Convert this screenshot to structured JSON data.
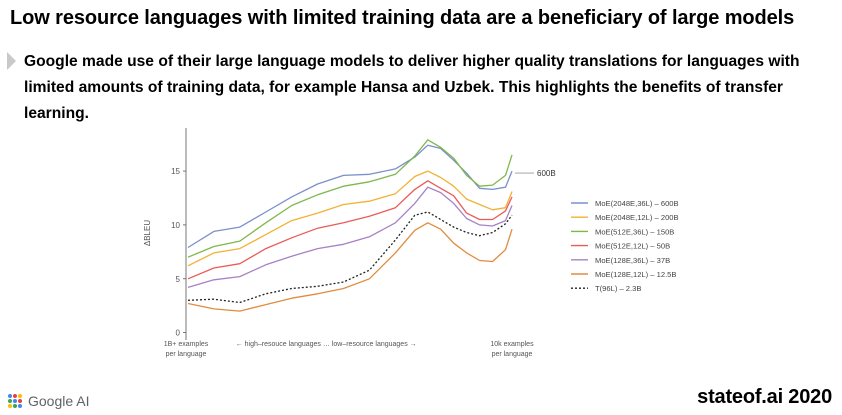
{
  "header": {
    "title": "Low resource languages with limited training data are a beneficiary of large models",
    "subtitle": "Google made use of their large language models to deliver higher quality translations for languages with limited amounts of training data, for example Hansa and Uzbek. This highlights the benefits of transfer learning."
  },
  "footer": {
    "brand": "Google AI",
    "site": "stateof.ai 2020"
  },
  "chart_data": {
    "type": "line",
    "ylabel": "ΔBLEU",
    "ylim": [
      -0.5,
      19
    ],
    "yticks": [
      0,
      5,
      10,
      15
    ],
    "x_tick_labels": [
      {
        "at": 0,
        "lines": [
          "1B+ examples",
          "per language"
        ]
      },
      {
        "at": 43,
        "lines": [
          "← high–resouce languages  …  low–resource languages →"
        ]
      },
      {
        "at": 100,
        "lines": [
          "10k examples",
          "per language"
        ]
      }
    ],
    "annotation": {
      "text": "600B",
      "series": 0
    },
    "legend_position": "right",
    "grid": false,
    "series": [
      {
        "name": "MoE(2048E,36L) – 600B",
        "color": "#7b8fcc",
        "dash": "",
        "points": [
          [
            0,
            7.9
          ],
          [
            8,
            9.4
          ],
          [
            16,
            9.8
          ],
          [
            24,
            11.2
          ],
          [
            32,
            12.6
          ],
          [
            40,
            13.8
          ],
          [
            48,
            14.6
          ],
          [
            56,
            14.7
          ],
          [
            64,
            15.2
          ],
          [
            70,
            16.3
          ],
          [
            74,
            17.4
          ],
          [
            78,
            17.1
          ],
          [
            82,
            16.0
          ],
          [
            86,
            14.8
          ],
          [
            90,
            13.4
          ],
          [
            94,
            13.3
          ],
          [
            98,
            13.5
          ],
          [
            100,
            15.0
          ]
        ]
      },
      {
        "name": "MoE(2048E,12L) – 200B",
        "color": "#f2b134",
        "dash": "",
        "points": [
          [
            0,
            6.2
          ],
          [
            8,
            7.4
          ],
          [
            16,
            7.8
          ],
          [
            24,
            9.1
          ],
          [
            32,
            10.4
          ],
          [
            40,
            11.1
          ],
          [
            48,
            11.9
          ],
          [
            56,
            12.2
          ],
          [
            64,
            12.9
          ],
          [
            70,
            14.5
          ],
          [
            74,
            15.0
          ],
          [
            78,
            14.4
          ],
          [
            82,
            13.6
          ],
          [
            86,
            12.4
          ],
          [
            90,
            11.9
          ],
          [
            94,
            11.4
          ],
          [
            98,
            11.6
          ],
          [
            100,
            13.1
          ]
        ]
      },
      {
        "name": "MoE(512E,36L) – 150B",
        "color": "#7fb84a",
        "dash": "",
        "points": [
          [
            0,
            7.0
          ],
          [
            8,
            8.0
          ],
          [
            16,
            8.5
          ],
          [
            24,
            10.2
          ],
          [
            32,
            11.8
          ],
          [
            40,
            12.8
          ],
          [
            48,
            13.6
          ],
          [
            56,
            14.0
          ],
          [
            64,
            14.7
          ],
          [
            70,
            16.4
          ],
          [
            74,
            17.9
          ],
          [
            78,
            17.2
          ],
          [
            82,
            16.2
          ],
          [
            86,
            14.6
          ],
          [
            90,
            13.6
          ],
          [
            94,
            13.7
          ],
          [
            98,
            14.6
          ],
          [
            100,
            16.5
          ]
        ]
      },
      {
        "name": "MoE(512E,12L) – 50B",
        "color": "#ec5a56",
        "dash": "",
        "points": [
          [
            0,
            5.0
          ],
          [
            8,
            6.0
          ],
          [
            16,
            6.4
          ],
          [
            24,
            7.8
          ],
          [
            32,
            8.8
          ],
          [
            40,
            9.7
          ],
          [
            48,
            10.2
          ],
          [
            56,
            10.8
          ],
          [
            64,
            11.6
          ],
          [
            70,
            13.3
          ],
          [
            74,
            14.1
          ],
          [
            78,
            13.4
          ],
          [
            82,
            12.7
          ],
          [
            86,
            11.1
          ],
          [
            90,
            10.5
          ],
          [
            94,
            10.5
          ],
          [
            98,
            11.3
          ],
          [
            100,
            12.6
          ]
        ]
      },
      {
        "name": "MoE(128E,36L) – 37B",
        "color": "#a582c4",
        "dash": "",
        "points": [
          [
            0,
            4.2
          ],
          [
            8,
            4.9
          ],
          [
            16,
            5.2
          ],
          [
            24,
            6.3
          ],
          [
            32,
            7.1
          ],
          [
            40,
            7.8
          ],
          [
            48,
            8.2
          ],
          [
            56,
            8.9
          ],
          [
            64,
            10.2
          ],
          [
            70,
            12.0
          ],
          [
            74,
            13.5
          ],
          [
            78,
            13.0
          ],
          [
            82,
            12.0
          ],
          [
            86,
            10.6
          ],
          [
            90,
            10.0
          ],
          [
            94,
            9.9
          ],
          [
            98,
            10.4
          ],
          [
            100,
            11.8
          ]
        ]
      },
      {
        "name": "MoE(128E,12L) – 12.5B",
        "color": "#e08c3f",
        "dash": "",
        "points": [
          [
            0,
            2.7
          ],
          [
            8,
            2.2
          ],
          [
            16,
            2.0
          ],
          [
            24,
            2.6
          ],
          [
            32,
            3.2
          ],
          [
            40,
            3.6
          ],
          [
            48,
            4.1
          ],
          [
            56,
            5.0
          ],
          [
            64,
            7.4
          ],
          [
            70,
            9.5
          ],
          [
            74,
            10.2
          ],
          [
            78,
            9.6
          ],
          [
            82,
            8.3
          ],
          [
            86,
            7.4
          ],
          [
            90,
            6.7
          ],
          [
            94,
            6.6
          ],
          [
            98,
            7.7
          ],
          [
            100,
            9.6
          ]
        ]
      },
      {
        "name": "T(96L) – 2.3B",
        "color": "#222222",
        "dash": "2,2",
        "points": [
          [
            0,
            3.0
          ],
          [
            8,
            3.1
          ],
          [
            16,
            2.8
          ],
          [
            24,
            3.6
          ],
          [
            32,
            4.1
          ],
          [
            40,
            4.3
          ],
          [
            48,
            4.7
          ],
          [
            56,
            5.8
          ],
          [
            64,
            8.6
          ],
          [
            70,
            10.9
          ],
          [
            74,
            11.2
          ],
          [
            78,
            10.5
          ],
          [
            82,
            9.8
          ],
          [
            86,
            9.3
          ],
          [
            90,
            9.0
          ],
          [
            94,
            9.3
          ],
          [
            98,
            10.1
          ],
          [
            100,
            10.9
          ]
        ]
      }
    ]
  }
}
